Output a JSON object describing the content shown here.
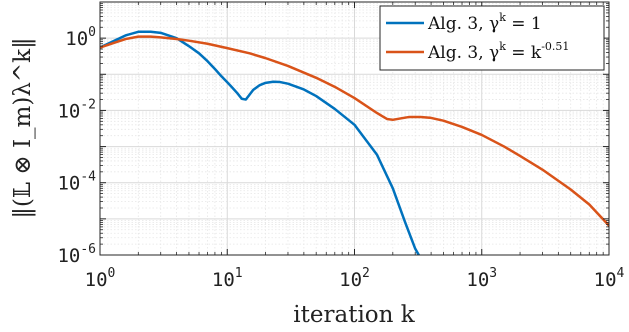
{
  "chart_data": {
    "type": "line",
    "xlabel": "iteration k",
    "ylabel": "‖(𝕃 ⊗ I_m)λ^k‖",
    "xscale": "log",
    "yscale": "log",
    "xlim": [
      1,
      10000
    ],
    "ylim": [
      1e-06,
      10
    ],
    "grid": true,
    "minor_grid": true,
    "legend_position": "top-right",
    "x_ticks": [
      {
        "base": "10",
        "exp": "0"
      },
      {
        "base": "10",
        "exp": "1"
      },
      {
        "base": "10",
        "exp": "2"
      },
      {
        "base": "10",
        "exp": "3"
      },
      {
        "base": "10",
        "exp": "4"
      }
    ],
    "y_ticks": [
      {
        "base": "10",
        "exp": "0"
      },
      {
        "base": "10",
        "exp": "-2"
      },
      {
        "base": "10",
        "exp": "-4"
      },
      {
        "base": "10",
        "exp": "-6"
      }
    ],
    "series": [
      {
        "name": "Alg. 3, γ^k = 1",
        "legend_main": "Alg. 3, γ",
        "legend_sup": "k",
        "legend_tail": " = 1",
        "color": "#0072BD",
        "x": [
          1,
          1.3,
          1.6,
          2,
          2.5,
          3,
          4,
          5,
          6,
          7,
          8,
          9,
          10,
          11,
          12,
          13,
          14,
          16,
          18,
          20,
          23,
          26,
          30,
          40,
          50,
          70,
          100,
          150,
          200,
          250,
          300,
          320
        ],
        "y": [
          0.55,
          0.85,
          1.2,
          1.5,
          1.5,
          1.4,
          1.0,
          0.6,
          0.38,
          0.23,
          0.14,
          0.088,
          0.06,
          0.042,
          0.03,
          0.021,
          0.02,
          0.037,
          0.05,
          0.058,
          0.062,
          0.061,
          0.055,
          0.038,
          0.025,
          0.011,
          0.004,
          0.0006,
          7e-05,
          8e-06,
          1.5e-06,
          1e-06
        ]
      },
      {
        "name": "Alg. 3, γ^k = k^-0.51",
        "legend_main": "Alg. 3, γ",
        "legend_sup": "k",
        "legend_tail": " = k",
        "legend_tail_sup": "-0.51",
        "color": "#D95319",
        "x": [
          1,
          1.3,
          1.6,
          2,
          2.5,
          3,
          4,
          5,
          7,
          10,
          15,
          20,
          30,
          50,
          70,
          100,
          150,
          180,
          200,
          230,
          270,
          330,
          400,
          500,
          700,
          1000,
          1500,
          2000,
          3000,
          5000,
          7000,
          10000
        ],
        "y": [
          0.55,
          0.75,
          0.95,
          1.1,
          1.1,
          1.05,
          0.95,
          0.85,
          0.7,
          0.53,
          0.38,
          0.28,
          0.17,
          0.08,
          0.045,
          0.022,
          0.0085,
          0.0058,
          0.0055,
          0.006,
          0.0066,
          0.0066,
          0.0062,
          0.0052,
          0.0035,
          0.0021,
          0.001,
          0.00055,
          0.00023,
          6.5e-05,
          2.5e-05,
          6.5e-06
        ]
      }
    ]
  }
}
